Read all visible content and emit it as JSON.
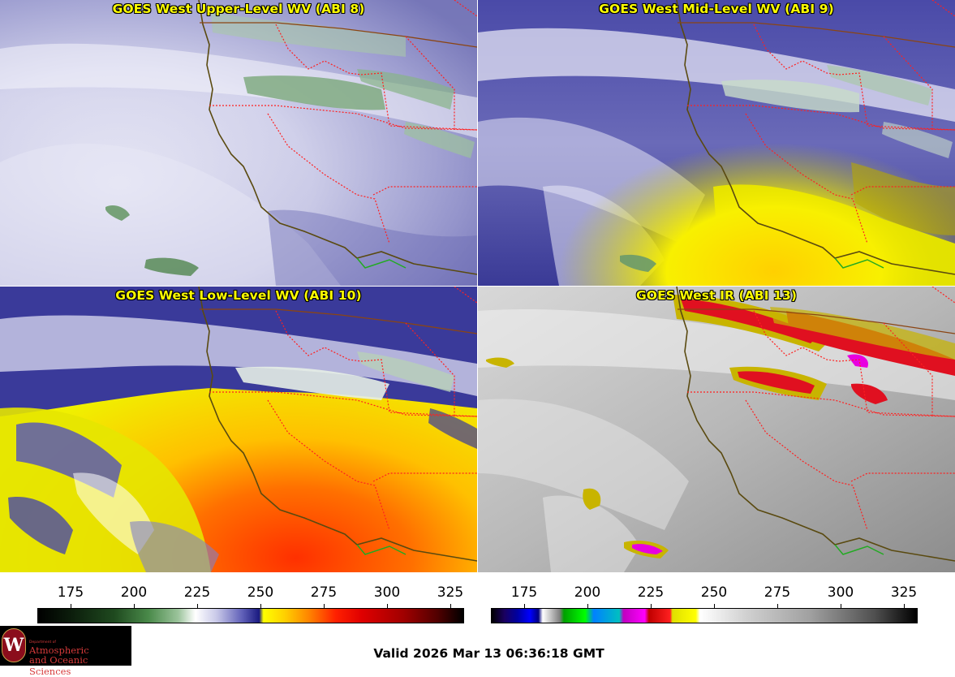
{
  "panels": [
    {
      "title": "GOES West Upper-Level WV (ABI 8)",
      "kind": "upper"
    },
    {
      "title": "GOES West Mid-Level WV (ABI 9)",
      "kind": "mid"
    },
    {
      "title": "GOES West Low-Level WV (ABI 10)",
      "kind": "low"
    },
    {
      "title": "GOES West IR (ABI 13)",
      "kind": "ir"
    }
  ],
  "colorbars": {
    "ticks": [
      "175",
      "200",
      "225",
      "250",
      "275",
      "300",
      "325"
    ]
  },
  "logo": {
    "seal_letter": "W",
    "dept": "Department of",
    "line1": "Atmospheric",
    "line2": "and Oceanic Sciences"
  },
  "valid_text": "Valid 2026 Mar 13 06:36:18 GMT",
  "colors": {
    "title": "#ffff00",
    "border_state": "#ff2020",
    "coast": "#5a4a10",
    "mexico": "#22aa22"
  }
}
